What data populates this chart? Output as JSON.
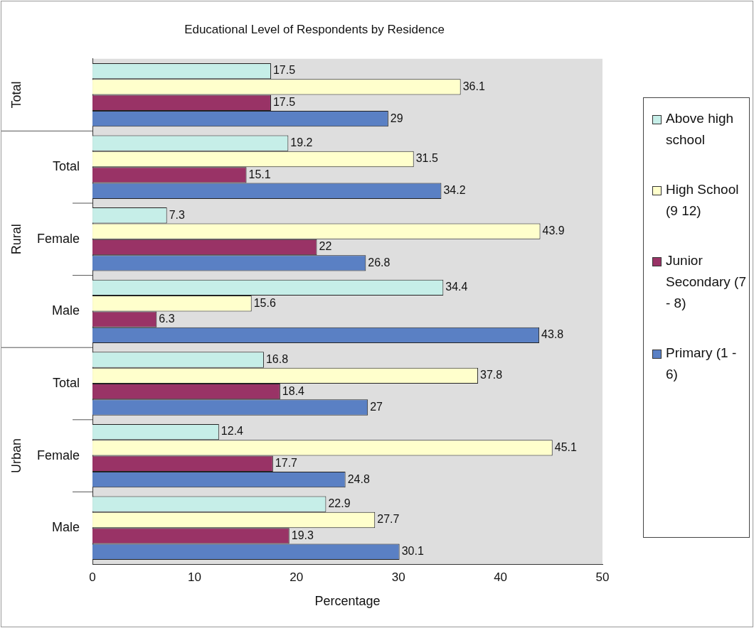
{
  "chart_data": {
    "type": "bar",
    "orientation": "horizontal",
    "title": "Educational Level of Respondents by Residence",
    "xlabel": "Percentage",
    "categories": [
      null,
      "Total",
      "Female",
      "Male",
      "Total",
      "Female",
      "Male"
    ],
    "annotations": [
      "Total",
      "Rural",
      "Urban"
    ],
    "series": [
      {
        "name": "Above high school",
        "color": "#c6eee8",
        "values": [
          17.5,
          19.2,
          7.3,
          34.4,
          16.8,
          12.4,
          22.9
        ]
      },
      {
        "name": "High School (9 12)",
        "color": "#ffffcc",
        "values": [
          36.1,
          31.5,
          43.9,
          15.6,
          37.8,
          45.1,
          27.7
        ]
      },
      {
        "name": "Junior Secondary (7 - 8)",
        "color": "#993366",
        "values": [
          17.5,
          15.1,
          22,
          6.3,
          18.4,
          17.7,
          19.3
        ]
      },
      {
        "name": "Primary (1 - 6)",
        "color": "#5a80c4",
        "values": [
          29,
          34.2,
          26.8,
          43.8,
          27,
          24.8,
          30.1
        ]
      }
    ],
    "xlim": [
      0,
      50
    ],
    "xticks": [
      0,
      10,
      20,
      30,
      40,
      50
    ],
    "data_labels": true,
    "grid": false,
    "legend": "right"
  }
}
